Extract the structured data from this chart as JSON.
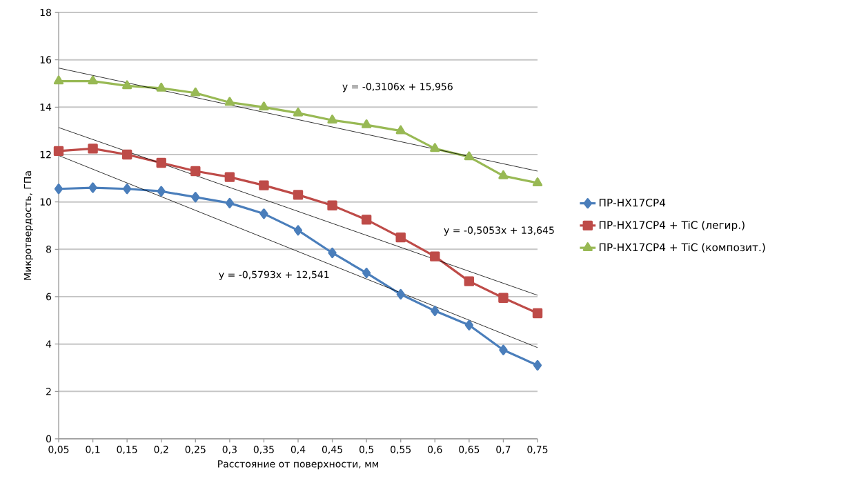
{
  "chart_data": {
    "type": "line",
    "xlabel": "Расстояние от поверхности, мм",
    "ylabel": "Микротвердость, ГПа",
    "categories": [
      "0,05",
      "0,1",
      "0,15",
      "0,2",
      "0,25",
      "0,3",
      "0,35",
      "0,4",
      "0,45",
      "0,5",
      "0,55",
      "0,6",
      "0,65",
      "0,7",
      "0,75"
    ],
    "series": [
      {
        "name": "ПР-НХ17СР4",
        "color": "#4a7ebb",
        "marker": "diamond",
        "values": [
          10.55,
          10.6,
          10.55,
          10.45,
          10.2,
          9.95,
          9.5,
          8.8,
          7.85,
          7.0,
          6.1,
          5.4,
          4.8,
          3.75,
          3.1
        ]
      },
      {
        "name": "ПР-НХ17СР4 + TiC (легир.)",
        "color": "#be4b48",
        "marker": "square",
        "values": [
          12.15,
          12.25,
          12.0,
          11.65,
          11.3,
          11.05,
          10.7,
          10.3,
          9.85,
          9.25,
          8.5,
          7.7,
          6.65,
          5.95,
          5.3
        ]
      },
      {
        "name": "ПР-НХ17СР4 + TiC (композит.)",
        "color": "#98b954",
        "marker": "triangle",
        "values": [
          15.1,
          15.1,
          14.9,
          14.8,
          14.6,
          14.2,
          14.0,
          13.75,
          13.45,
          13.25,
          13.0,
          12.25,
          11.9,
          11.1,
          10.8
        ]
      },
      {
        "type": "line",
        "color": "#000000",
        "marker": "none",
        "x": [
          "0,05",
          "0,75"
        ],
        "values": [
          15.65,
          11.3
        ]
      },
      {
        "type": "line",
        "color": "#000000",
        "marker": "none",
        "x": [
          "0,05",
          "0,75"
        ],
        "values": [
          13.14,
          6.06
        ]
      },
      {
        "type": "line",
        "color": "#000000",
        "marker": "none",
        "x": [
          "0,05",
          "0,75"
        ],
        "values": [
          11.96,
          3.85
        ]
      }
    ],
    "annotations": [
      "y = -0,3106x + 15,956",
      "y = -0,5053x + 13,645",
      "y = -0,5793x + 12,541"
    ],
    "ylim": [
      0,
      18
    ],
    "yticks": [
      0,
      2,
      4,
      6,
      8,
      10,
      12,
      14,
      16,
      18
    ],
    "grid": "y",
    "legend": "right"
  }
}
